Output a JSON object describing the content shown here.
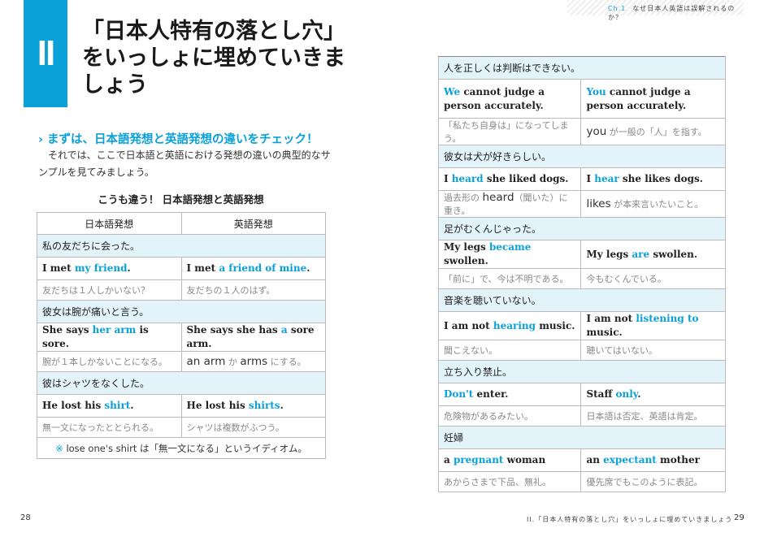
{
  "left_page": {
    "chapter_numeral": "II",
    "title": "「日本人特有の落とし穴」をいっしょに埋めていきましょう",
    "lead_icon": "chevron-right-icon",
    "lead": "まずは、日本語発想と英語発想の違いをチェック！",
    "body": "それでは、ここで日本語と英語における発想の違いの典型的なサンプルを見てみましょう。",
    "table_caption": "こうも違う！ 日本語発想と英語発想",
    "table_headers": [
      "日本語発想",
      "英語発想"
    ],
    "rows": [
      {
        "heading": "私の友だちに会った。",
        "en": [
          [
            {
              "t": "I met "
            },
            {
              "t": "my friend",
              "k": "hl"
            },
            {
              "t": "."
            }
          ],
          [
            {
              "t": "I met "
            },
            {
              "t": "a friend of mine",
              "k": "hl"
            },
            {
              "t": "."
            }
          ]
        ],
        "note": [
          [
            {
              "t": "友だちは１人しかいない？"
            }
          ],
          [
            {
              "t": "友だちの１人のはず。"
            }
          ]
        ]
      },
      {
        "heading": "彼女は腕が痛いと言う。",
        "en": [
          [
            {
              "t": "She says "
            },
            {
              "t": "her arm",
              "k": "hl"
            },
            {
              "t": " is sore."
            }
          ],
          [
            {
              "t": "She says she has "
            },
            {
              "t": "a",
              "k": "hl"
            },
            {
              "t": " sore arm."
            }
          ]
        ],
        "note": [
          [
            {
              "t": "腕が１本しかないことになる。"
            }
          ],
          [
            {
              "t": "an arm",
              "k": "ent"
            },
            {
              "t": " か "
            },
            {
              "t": "arms",
              "k": "ent"
            },
            {
              "t": " にする。"
            }
          ]
        ]
      },
      {
        "heading": "彼はシャツをなくした。",
        "en": [
          [
            {
              "t": "He lost his "
            },
            {
              "t": "shirt",
              "k": "hl"
            },
            {
              "t": "."
            }
          ],
          [
            {
              "t": "He lost his "
            },
            {
              "t": "shirts",
              "k": "hl"
            },
            {
              "t": "."
            }
          ]
        ],
        "note": [
          [
            {
              "t": "無一文になったととられる。"
            }
          ],
          [
            {
              "t": "シャツは複数がふつう。"
            }
          ]
        ]
      }
    ],
    "footnote_mark": "※",
    "footnote": " lose one's shirt は「無一文になる」というイディオム。",
    "page_number": "28"
  },
  "right_page": {
    "running_header_chapter": "Ch.1",
    "running_header": "なぜ日本人英語は誤解されるのか？",
    "rows": [
      {
        "heading": "人を正しくは判断はできない。",
        "en": [
          [
            {
              "t": "We",
              "k": "hl"
            },
            {
              "t": " cannot judge a person accurately."
            }
          ],
          [
            {
              "t": "You",
              "k": "hl"
            },
            {
              "t": " cannot judge a person accurately."
            }
          ]
        ],
        "note": [
          [
            {
              "t": "「私たち自身は」になってしまう。"
            }
          ],
          [
            {
              "t": "you",
              "k": "ent"
            },
            {
              "t": " が一般の「人」を指す。"
            }
          ]
        ]
      },
      {
        "heading": "彼女は犬が好きらしい。",
        "en": [
          [
            {
              "t": "I "
            },
            {
              "t": "heard",
              "k": "hl"
            },
            {
              "t": " she liked dogs."
            }
          ],
          [
            {
              "t": "I "
            },
            {
              "t": "hear",
              "k": "hl"
            },
            {
              "t": " she likes dogs."
            }
          ]
        ],
        "note": [
          [
            {
              "t": "過去形の "
            },
            {
              "t": "heard",
              "k": "ent"
            },
            {
              "t": "（聞いた）に重き。"
            }
          ],
          [
            {
              "t": "likes",
              "k": "ent"
            },
            {
              "t": " が本来言いたいこと。"
            }
          ]
        ]
      },
      {
        "heading": "足がむくんじゃった。",
        "en": [
          [
            {
              "t": "My legs "
            },
            {
              "t": "became",
              "k": "hl"
            },
            {
              "t": " swollen."
            }
          ],
          [
            {
              "t": "My legs "
            },
            {
              "t": "are",
              "k": "hl"
            },
            {
              "t": " swollen."
            }
          ]
        ],
        "note": [
          [
            {
              "t": "「前に」で、今は不明である。"
            }
          ],
          [
            {
              "t": "今もむくんでいる。"
            }
          ]
        ]
      },
      {
        "heading": "音楽を聴いていない。",
        "en": [
          [
            {
              "t": "I am not "
            },
            {
              "t": "hearing",
              "k": "hl"
            },
            {
              "t": " music."
            }
          ],
          [
            {
              "t": "I am not "
            },
            {
              "t": "listening to",
              "k": "hl"
            },
            {
              "t": " music."
            }
          ]
        ],
        "note": [
          [
            {
              "t": "聞こえない。"
            }
          ],
          [
            {
              "t": "聴いてはいない。"
            }
          ]
        ]
      },
      {
        "heading": "立ち入り禁止。",
        "en": [
          [
            {
              "t": "Don't",
              "k": "hl"
            },
            {
              "t": " enter."
            }
          ],
          [
            {
              "t": "Staff "
            },
            {
              "t": "only",
              "k": "hl"
            },
            {
              "t": "."
            }
          ]
        ],
        "note": [
          [
            {
              "t": "危険物があるみたい。"
            }
          ],
          [
            {
              "t": "日本語は否定、英語は肯定。"
            }
          ]
        ]
      },
      {
        "heading": "妊婦",
        "en": [
          [
            {
              "t": "a "
            },
            {
              "t": "pregnant",
              "k": "hl"
            },
            {
              "t": " woman"
            }
          ],
          [
            {
              "t": "an "
            },
            {
              "t": "expectant",
              "k": "hl"
            },
            {
              "t": " mother"
            }
          ]
        ],
        "note": [
          [
            {
              "t": "あからさまで下品、無礼。"
            }
          ],
          [
            {
              "t": "優先席でもこのように表記。"
            }
          ]
        ]
      }
    ],
    "running_footer": "II.「日本人特有の落とし穴」をいっしょに埋めていきましょう",
    "page_number": "29"
  },
  "colors": {
    "accent": "#0aa0d8",
    "row_heading_bg": "#e2f3fa"
  }
}
